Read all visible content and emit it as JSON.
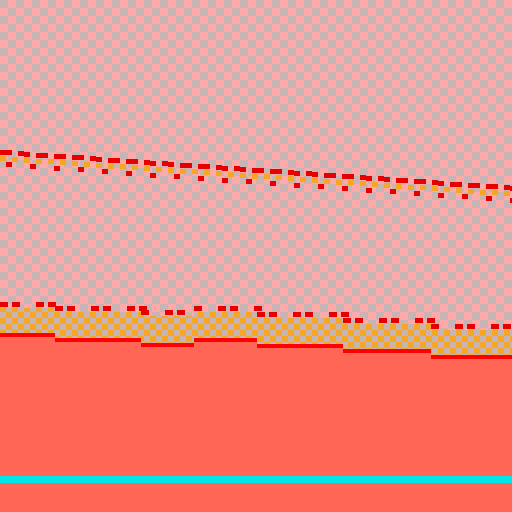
{
  "scene": {
    "colors": {
      "sky_a": "#ffaaaa",
      "sky_b": "#c8b4b4",
      "band_edge": "#e60000",
      "band_fill": "#f5a623",
      "band_check": "#c8b4b4",
      "ground": "#ff6655",
      "ground_edge": "#ff0000",
      "water_line": "#00e5e5"
    },
    "layers": [
      "sky-checker",
      "upper-band",
      "lower-band",
      "ground",
      "water-line"
    ]
  }
}
